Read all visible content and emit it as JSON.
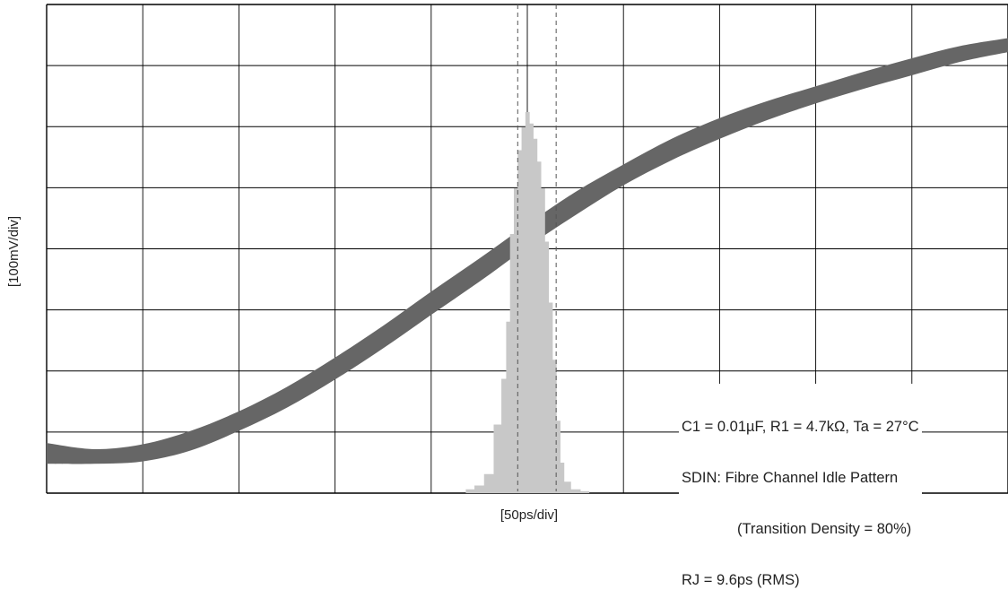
{
  "chart_data": {
    "type": "line",
    "title": "",
    "xlabel": "[50ps/div]",
    "ylabel": "[100mV/div]",
    "grid": true,
    "grid_divisions": {
      "x": 10,
      "y": 8
    },
    "xlim": [
      -250,
      250
    ],
    "ylim": [
      -400,
      400
    ],
    "x_unit": "ps",
    "y_unit": "mV",
    "series": [
      {
        "kind": "eye-waveform-band",
        "x": [
          -250,
          -225,
          -200,
          -175,
          -150,
          -125,
          -100,
          -75,
          -50,
          -25,
          0,
          25,
          50,
          75,
          100,
          125,
          150,
          175,
          200,
          225,
          250
        ],
        "y_upper": [
          -318,
          -328,
          -320,
          -298,
          -266,
          -226,
          -178,
          -126,
          -70,
          -16,
          40,
          93,
          138,
          180,
          214,
          242,
          266,
          290,
          312,
          332,
          345
        ],
        "y_lower": [
          -352,
          -352,
          -348,
          -330,
          -298,
          -260,
          -214,
          -163,
          -108,
          -54,
          3,
          55,
          104,
          145,
          180,
          211,
          238,
          262,
          284,
          306,
          322
        ]
      },
      {
        "kind": "jitter-histogram",
        "x": [
          -30,
          -25,
          -20,
          -15,
          -12,
          -10,
          -8,
          -6,
          -4,
          -2,
          0,
          2,
          4,
          6,
          8,
          10,
          12,
          14,
          16,
          18,
          20,
          25,
          30
        ],
        "relative_height": [
          0.01,
          0.02,
          0.05,
          0.18,
          0.3,
          0.45,
          0.68,
          0.8,
          0.9,
          0.96,
          1.0,
          0.97,
          0.93,
          0.87,
          0.8,
          0.66,
          0.5,
          0.35,
          0.19,
          0.08,
          0.03,
          0.01,
          0.005
        ]
      }
    ],
    "markers": {
      "dashed_lines_x": [
        -5,
        15
      ]
    },
    "colors": {
      "band": "#666666",
      "histogram": "#c8c8c8",
      "grid": "#000000",
      "markers": "#555555"
    },
    "annotation_lines": [
      "C1 = 0.01µF, R1 = 4.7kΩ, Ta = 27°C",
      "SDIN: Fibre Channel Idle Pattern",
      "(Transition Density = 80%)",
      "RJ = 9.6ps (RMS)"
    ]
  }
}
